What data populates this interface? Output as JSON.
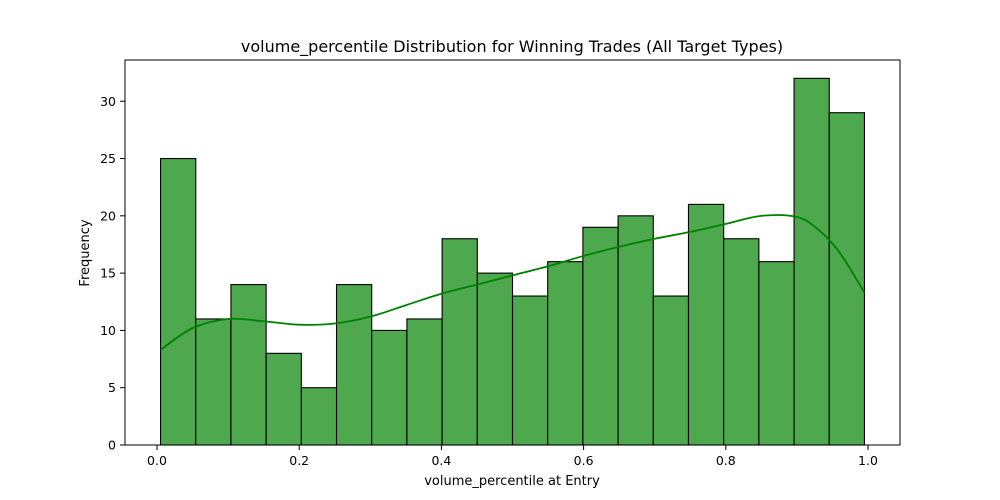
{
  "chart_data": {
    "type": "bar",
    "subtype": "histogram",
    "title": "volume_percentile Distribution for Winning Trades (All Target Types)",
    "xlabel": "volume_percentile at Entry",
    "ylabel": "Frequency",
    "xlim": [
      -0.045,
      1.045
    ],
    "ylim": [
      0,
      33.6
    ],
    "xticks": [
      0.0,
      0.2,
      0.4,
      0.6,
      0.8,
      1.0
    ],
    "xtick_labels": [
      "0.0",
      "0.2",
      "0.4",
      "0.6",
      "0.8",
      "1.0"
    ],
    "yticks": [
      0,
      5,
      10,
      15,
      20,
      25,
      30
    ],
    "ytick_labels": [
      "0",
      "5",
      "10",
      "15",
      "20",
      "25",
      "30"
    ],
    "bin_edges": [
      0.005,
      0.0545,
      0.104,
      0.1535,
      0.203,
      0.2525,
      0.302,
      0.3515,
      0.401,
      0.4505,
      0.5,
      0.5495,
      0.599,
      0.6485,
      0.698,
      0.7475,
      0.797,
      0.8465,
      0.896,
      0.9455,
      0.995
    ],
    "counts": [
      25,
      11,
      14,
      8,
      5,
      14,
      10,
      11,
      18,
      15,
      13,
      16,
      19,
      20,
      13,
      21,
      18,
      16,
      32,
      29
    ],
    "bar_color": "#4ea84e",
    "edge_color": "#000000",
    "kde": {
      "color": "#008000",
      "x": [
        0.005,
        0.05,
        0.1,
        0.15,
        0.2,
        0.25,
        0.3,
        0.35,
        0.4,
        0.45,
        0.5,
        0.55,
        0.6,
        0.65,
        0.7,
        0.75,
        0.8,
        0.85,
        0.9,
        0.93,
        0.96,
        0.995
      ],
      "y": [
        8.3,
        10.2,
        11.0,
        10.8,
        10.5,
        10.6,
        11.2,
        12.2,
        13.2,
        14.0,
        14.8,
        15.6,
        16.5,
        17.3,
        18.0,
        18.6,
        19.3,
        20.0,
        19.9,
        18.8,
        16.8,
        13.3
      ]
    },
    "grid": false,
    "legend": "none"
  }
}
